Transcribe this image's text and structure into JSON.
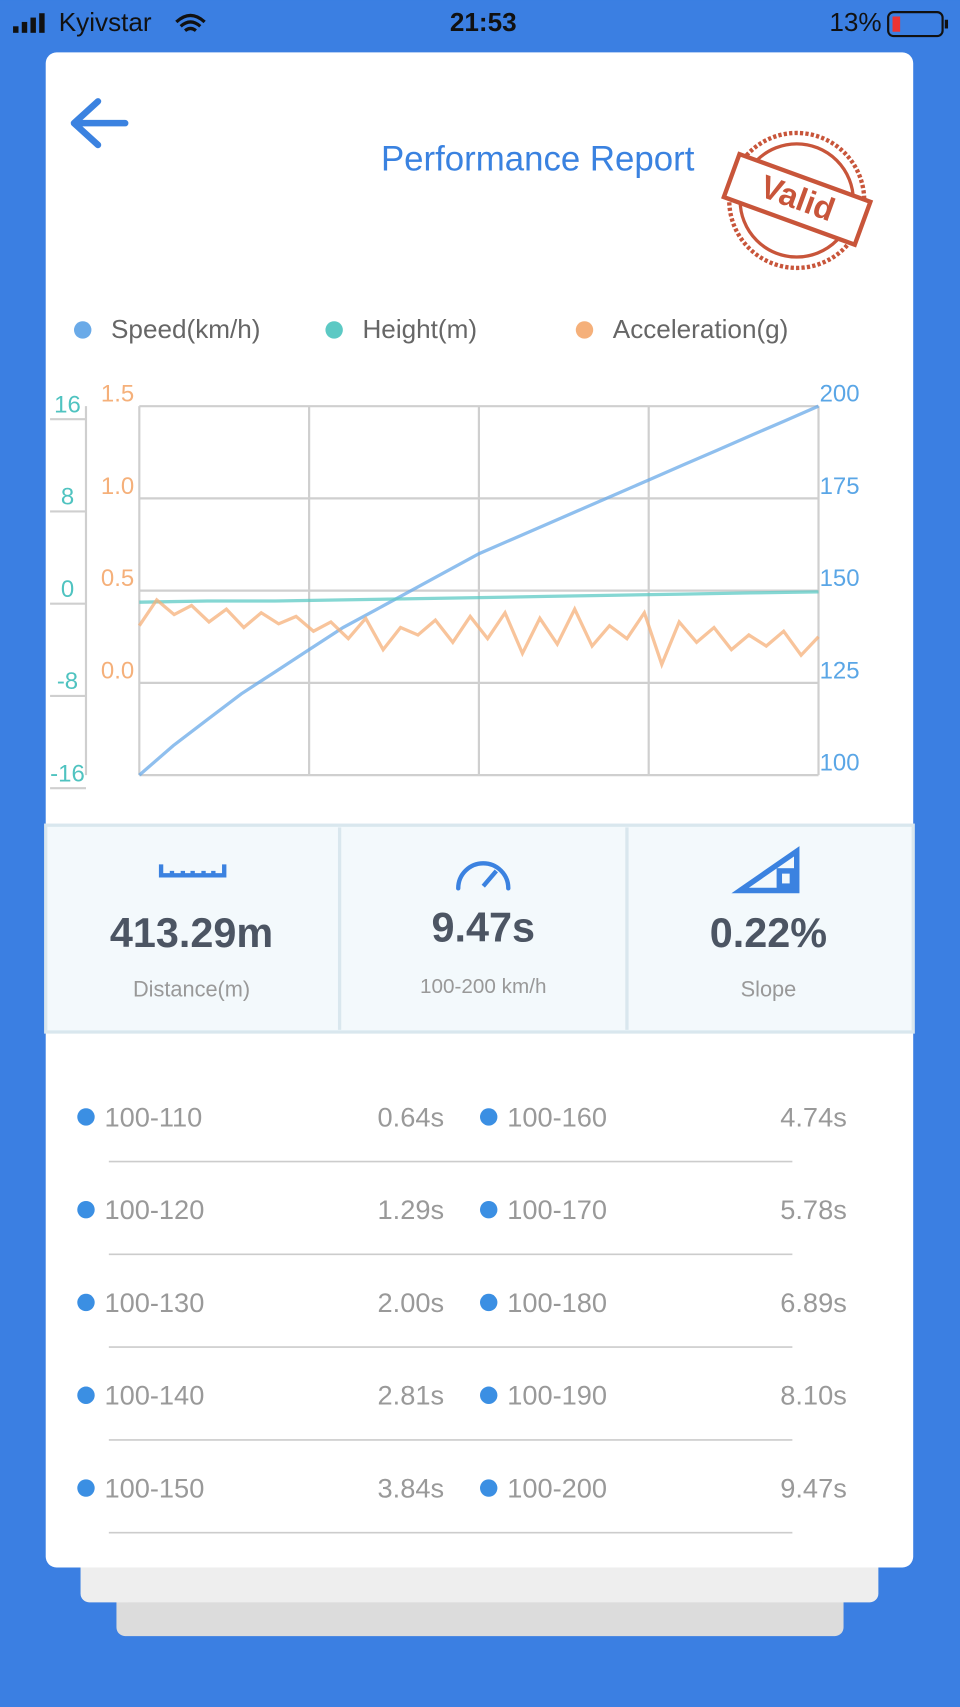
{
  "status_bar": {
    "carrier": "Kyivstar",
    "time": "21:53",
    "battery": "13%"
  },
  "header": {
    "title": "Performance Report",
    "stamp": "Valid"
  },
  "chart_data": {
    "type": "line",
    "grid": true,
    "ylim": [
      -16,
      16
    ],
    "yticks": [
      -16,
      -8,
      0,
      8,
      16
    ],
    "y2lim": [
      100,
      200
    ],
    "y2ticks": [
      100,
      125,
      150,
      175,
      200
    ],
    "y3lim": [
      -0.5,
      1.5
    ],
    "y3ticks": [
      {
        "value": 0,
        "label": "0.0"
      },
      0.5,
      {
        "value": 1,
        "label": "1.0"
      },
      1.5
    ],
    "series": [
      {
        "name": "Speed(km/h)",
        "color": "#6aaae8",
        "axis": "y2",
        "values": [
          100,
          108,
          115,
          122,
          128,
          134,
          140,
          145,
          150,
          155,
          160,
          164,
          168,
          172,
          176,
          180,
          184,
          188,
          192,
          196,
          200
        ]
      },
      {
        "name": "Height(m)",
        "color": "#5cc9c4",
        "values": [
          -1.0,
          -0.9,
          -0.9,
          -0.8,
          -0.7,
          -0.6,
          -0.5,
          -0.4,
          -0.3,
          -0.2,
          -0.1
        ]
      },
      {
        "name": "Acceleration(g)",
        "color": "#f5b07a",
        "axis": "y3",
        "values": [
          0.31,
          0.45,
          0.37,
          0.42,
          0.33,
          0.4,
          0.3,
          0.38,
          0.32,
          0.36,
          0.28,
          0.33,
          0.24,
          0.35,
          0.18,
          0.3,
          0.26,
          0.34,
          0.22,
          0.36,
          0.24,
          0.38,
          0.16,
          0.35,
          0.21,
          0.4,
          0.2,
          0.31,
          0.24,
          0.38,
          0.1,
          0.33,
          0.22,
          0.3,
          0.18,
          0.26,
          0.2,
          0.28,
          0.15,
          0.25
        ]
      }
    ]
  },
  "stats": [
    {
      "value": "413.29m",
      "label": "Distance(m)"
    },
    {
      "value": "9.47s",
      "label": "100-200 km/h"
    },
    {
      "value": "0.22%",
      "label": "Slope"
    }
  ],
  "splits": [
    {
      "range": "100-110",
      "time": "0.64s"
    },
    {
      "range": "100-120",
      "time": "1.29s"
    },
    {
      "range": "100-130",
      "time": "2.00s"
    },
    {
      "range": "100-140",
      "time": "2.81s"
    },
    {
      "range": "100-150",
      "time": "3.84s"
    },
    {
      "range": "100-160",
      "time": "4.74s"
    },
    {
      "range": "100-170",
      "time": "5.78s"
    },
    {
      "range": "100-180",
      "time": "6.89s"
    },
    {
      "range": "100-190",
      "time": "8.10s"
    },
    {
      "range": "100-200",
      "time": "9.47s"
    }
  ]
}
